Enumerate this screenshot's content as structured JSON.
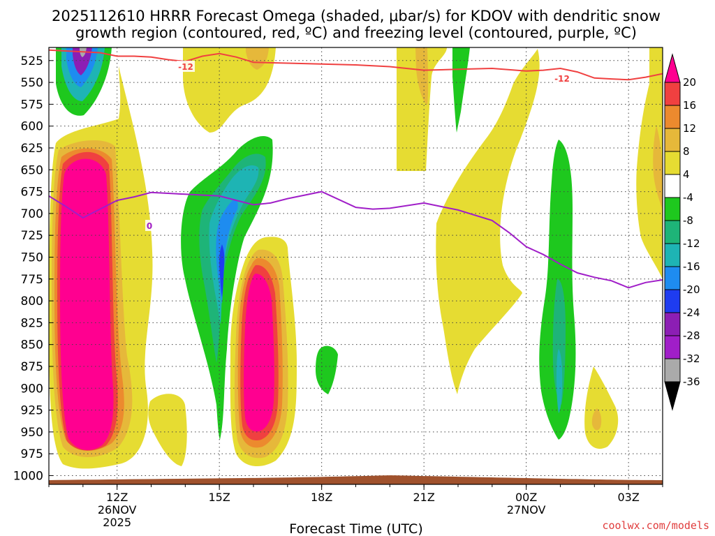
{
  "chart_data": {
    "type": "heatmap",
    "title": {
      "line1": "2025112610 HRRR Forecast Omega (shaded, μbar/s) for KDOV with dendritic snow",
      "line2": "growth region (contoured, red, ºC) and freezing level (contoured, purple, ºC)"
    },
    "xlabel": "Forecast Time (UTC)",
    "credit": "coolwx.com/models",
    "x_range_hours": [
      10.0,
      28.0
    ],
    "x_ticks": [
      {
        "hour": 12,
        "label": "12Z",
        "sub1": "26NOV",
        "sub2": "2025"
      },
      {
        "hour": 15,
        "label": "15Z",
        "sub1": "",
        "sub2": ""
      },
      {
        "hour": 18,
        "label": "18Z",
        "sub1": "",
        "sub2": ""
      },
      {
        "hour": 21,
        "label": "21Z",
        "sub1": "",
        "sub2": ""
      },
      {
        "hour": 24,
        "label": "00Z",
        "sub1": "27NOV",
        "sub2": ""
      },
      {
        "hour": 27,
        "label": "03Z",
        "sub1": "",
        "sub2": ""
      }
    ],
    "y_range_mb": [
      510,
      1010
    ],
    "y_ticks": [
      525,
      550,
      575,
      600,
      625,
      650,
      675,
      700,
      725,
      750,
      775,
      800,
      825,
      850,
      875,
      900,
      925,
      950,
      975,
      1000
    ],
    "colorbar": {
      "levels": [
        20,
        16,
        12,
        8,
        4,
        -4,
        -8,
        -12,
        -16,
        -20,
        -24,
        -28,
        -32,
        -36
      ],
      "colors": [
        "#ff0090",
        "#f04040",
        "#ec8a2e",
        "#e6b83a",
        "#e6dc32",
        "#ffffff",
        "#1ec81e",
        "#1eb478",
        "#1eb4b4",
        "#1e8cf0",
        "#1e3cf0",
        "#8c1eb4",
        "#a01ec8",
        "#aaaaaa",
        "#000000"
      ]
    },
    "contours": {
      "minus12": {
        "label": "-12",
        "color": "#f04040",
        "points": [
          [
            10.0,
            513
          ],
          [
            10.5,
            514
          ],
          [
            11.0,
            515
          ],
          [
            11.5,
            516
          ],
          [
            12.0,
            520
          ],
          [
            12.5,
            520
          ],
          [
            13.0,
            521
          ],
          [
            13.5,
            524
          ],
          [
            14.0,
            526
          ],
          [
            14.5,
            520
          ],
          [
            15.0,
            517
          ],
          [
            15.5,
            521
          ],
          [
            16.0,
            527
          ],
          [
            17.0,
            528
          ],
          [
            18.0,
            529
          ],
          [
            19.0,
            530
          ],
          [
            20.0,
            532
          ],
          [
            21.0,
            536
          ],
          [
            22.0,
            535
          ],
          [
            23.0,
            534
          ],
          [
            24.0,
            537
          ],
          [
            24.5,
            536
          ],
          [
            25.0,
            534
          ],
          [
            25.5,
            538
          ],
          [
            26.0,
            545
          ],
          [
            26.5,
            546
          ],
          [
            27.0,
            547
          ],
          [
            27.5,
            544
          ],
          [
            28.0,
            540
          ]
        ]
      },
      "freezing": {
        "label": "0",
        "color": "#a01ec8",
        "points": [
          [
            10.0,
            680
          ],
          [
            10.5,
            692
          ],
          [
            11.0,
            705
          ],
          [
            11.5,
            695
          ],
          [
            12.0,
            685
          ],
          [
            12.5,
            681
          ],
          [
            13.0,
            676
          ],
          [
            14.0,
            678
          ],
          [
            15.0,
            680
          ],
          [
            15.5,
            685
          ],
          [
            16.0,
            690
          ],
          [
            16.5,
            688
          ],
          [
            17.0,
            683
          ],
          [
            18.0,
            675
          ],
          [
            19.0,
            693
          ],
          [
            19.5,
            695
          ],
          [
            20.0,
            694
          ],
          [
            21.0,
            688
          ],
          [
            22.0,
            696
          ],
          [
            23.0,
            708
          ],
          [
            23.5,
            722
          ],
          [
            24.0,
            738
          ],
          [
            24.5,
            747
          ],
          [
            25.0,
            758
          ],
          [
            25.5,
            768
          ],
          [
            26.0,
            773
          ],
          [
            26.5,
            777
          ],
          [
            27.0,
            785
          ],
          [
            27.5,
            779
          ],
          [
            28.0,
            776
          ]
        ]
      }
    },
    "terrain_color": "#a0522d"
  }
}
